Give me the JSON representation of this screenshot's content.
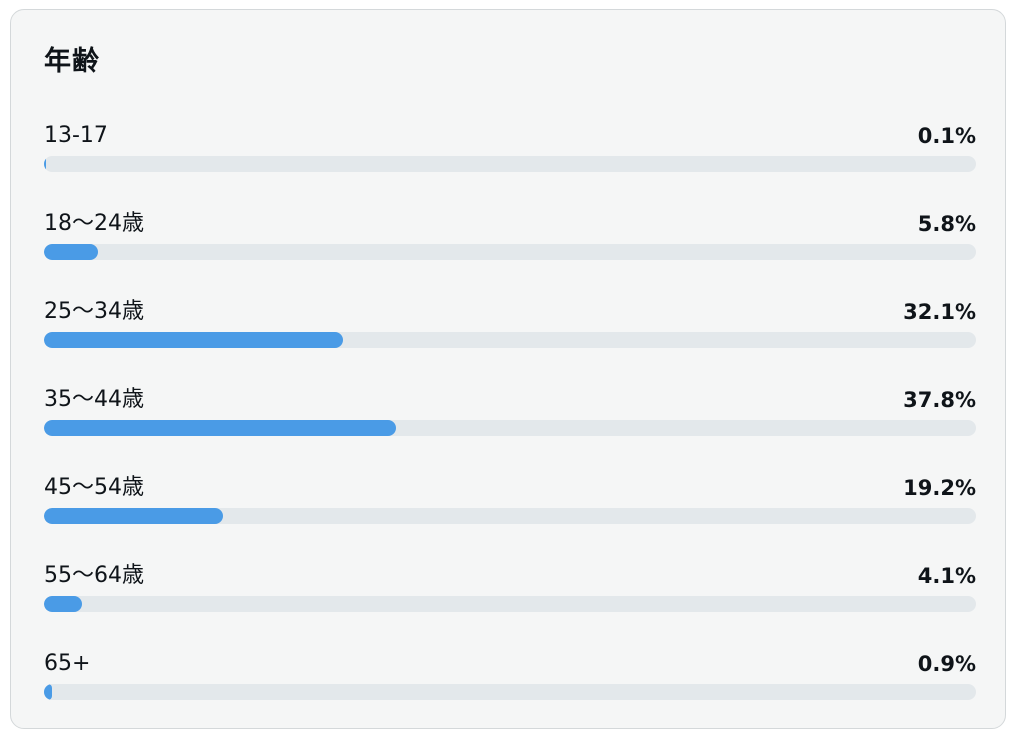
{
  "card": {
    "title": "年齢"
  },
  "chart_data": {
    "type": "bar",
    "orientation": "horizontal",
    "title": "年齢",
    "categories": [
      "13-17",
      "18〜24歳",
      "25〜34歳",
      "35〜44歳",
      "45〜54歳",
      "55〜64歳",
      "65+"
    ],
    "values": [
      0.1,
      5.8,
      32.1,
      37.8,
      19.2,
      4.1,
      0.9
    ],
    "value_labels": [
      "0.1%",
      "5.8%",
      "32.1%",
      "37.8%",
      "19.2%",
      "4.1%",
      "0.9%"
    ],
    "unit": "%",
    "xlim": [
      0,
      100
    ],
    "bar_color": "#4a9be6",
    "track_color": "#e3e8eb",
    "grid": false,
    "legend": "none"
  }
}
